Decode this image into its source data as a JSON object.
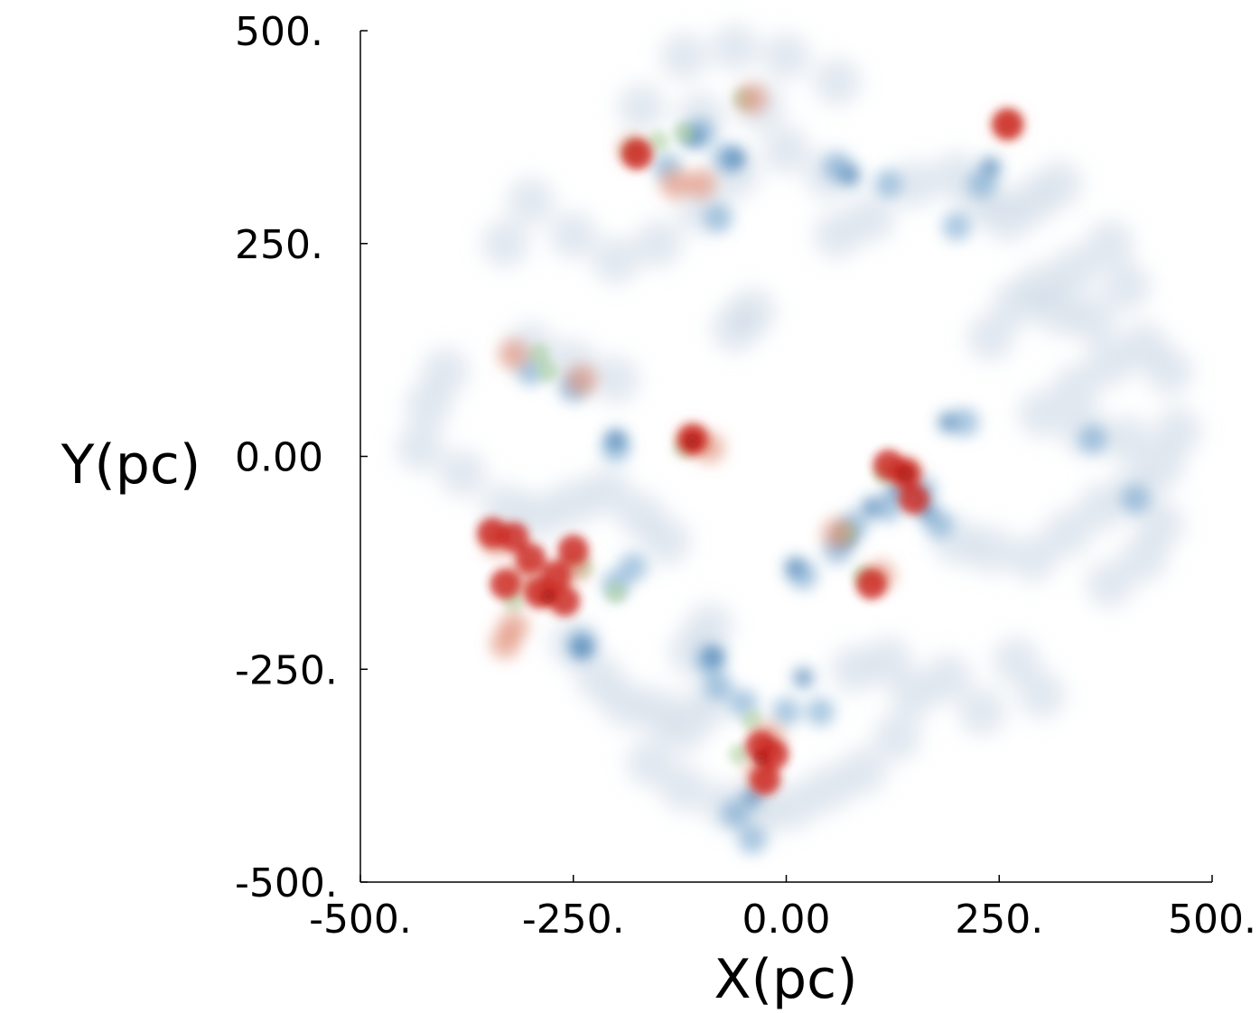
{
  "chart_data": {
    "type": "scatter",
    "xlabel": "X(pc)",
    "ylabel": "Y(pc)",
    "xlim": [
      -500,
      500
    ],
    "ylim": [
      -500,
      500
    ],
    "xticks": [
      -500,
      -250,
      0,
      250,
      500
    ],
    "yticks": [
      -500,
      -250,
      0,
      250,
      500
    ],
    "xtick_labels": [
      "-500.",
      "-250.",
      "0.00",
      "250.",
      "500."
    ],
    "ytick_labels": [
      "-500.",
      "-250.",
      "0.00",
      "250.",
      "500."
    ],
    "grid": false,
    "colors": {
      "diffuse": "#c9d6e3",
      "low": "#6a9fcb",
      "mid": "#2f6fa8",
      "green": "#a9cf9a",
      "salmon": "#e0896f",
      "high": "#c9221a",
      "peak": "#9e0f0c"
    },
    "series": [
      {
        "level": "diffuse",
        "points": [
          [
            -430,
            10
          ],
          [
            -380,
            -20
          ],
          [
            -330,
            -60
          ],
          [
            -290,
            -70
          ],
          [
            -250,
            -55
          ],
          [
            -210,
            -40
          ],
          [
            -170,
            -70
          ],
          [
            -140,
            -100
          ],
          [
            -250,
            -220
          ],
          [
            -220,
            -260
          ],
          [
            -190,
            -290
          ],
          [
            -150,
            -300
          ],
          [
            -120,
            -320
          ],
          [
            -90,
            -290
          ],
          [
            -110,
            -230
          ],
          [
            -90,
            -200
          ],
          [
            -160,
            -360
          ],
          [
            -120,
            -390
          ],
          [
            -70,
            -410
          ],
          [
            -30,
            -420
          ],
          [
            10,
            -410
          ],
          [
            50,
            -390
          ],
          [
            90,
            -370
          ],
          [
            130,
            -330
          ],
          [
            80,
            -250
          ],
          [
            120,
            -240
          ],
          [
            150,
            -280
          ],
          [
            190,
            -260
          ],
          [
            230,
            -300
          ],
          [
            270,
            -240
          ],
          [
            300,
            -280
          ],
          [
            200,
            -100
          ],
          [
            240,
            -110
          ],
          [
            290,
            -120
          ],
          [
            330,
            -90
          ],
          [
            370,
            -60
          ],
          [
            410,
            -40
          ],
          [
            440,
            -80
          ],
          [
            420,
            -120
          ],
          [
            380,
            -150
          ],
          [
            300,
            50
          ],
          [
            340,
            80
          ],
          [
            380,
            110
          ],
          [
            420,
            130
          ],
          [
            450,
            100
          ],
          [
            460,
            30
          ],
          [
            440,
            -10
          ],
          [
            400,
            20
          ],
          [
            350,
            30
          ],
          [
            300,
            200
          ],
          [
            340,
            220
          ],
          [
            380,
            250
          ],
          [
            400,
            200
          ],
          [
            360,
            160
          ],
          [
            320,
            170
          ],
          [
            270,
            180
          ],
          [
            240,
            140
          ],
          [
            150,
            320
          ],
          [
            200,
            330
          ],
          [
            230,
            300
          ],
          [
            260,
            280
          ],
          [
            290,
            300
          ],
          [
            320,
            320
          ],
          [
            100,
            280
          ],
          [
            -60,
            150
          ],
          [
            -40,
            170
          ],
          [
            -300,
            130
          ],
          [
            -250,
            110
          ],
          [
            -200,
            90
          ],
          [
            -400,
            100
          ],
          [
            -420,
            60
          ],
          [
            -300,
            300
          ],
          [
            -250,
            260
          ],
          [
            -330,
            250
          ],
          [
            -200,
            230
          ],
          [
            -150,
            250
          ],
          [
            -100,
            290
          ],
          [
            -60,
            330
          ],
          [
            0,
            360
          ],
          [
            50,
            330
          ],
          [
            60,
            260
          ],
          [
            -120,
            470
          ],
          [
            -60,
            480
          ],
          [
            0,
            470
          ],
          [
            60,
            440
          ],
          [
            -30,
            410
          ],
          [
            -100,
            400
          ],
          [
            -170,
            410
          ]
        ]
      },
      {
        "level": "low",
        "points": [
          [
            -240,
            -220
          ],
          [
            -200,
            -150
          ],
          [
            -180,
            -130
          ],
          [
            -90,
            -240
          ],
          [
            -80,
            -270
          ],
          [
            -50,
            -290
          ],
          [
            0,
            -300
          ],
          [
            40,
            -300
          ],
          [
            -60,
            -420
          ],
          [
            -40,
            -450
          ],
          [
            20,
            -140
          ],
          [
            60,
            -110
          ],
          [
            80,
            -80
          ],
          [
            120,
            -60
          ],
          [
            160,
            -40
          ],
          [
            180,
            -80
          ],
          [
            210,
            40
          ],
          [
            200,
            270
          ],
          [
            230,
            320
          ],
          [
            60,
            340
          ],
          [
            -100,
            380
          ],
          [
            -70,
            350
          ],
          [
            -140,
            340
          ],
          [
            -300,
            100
          ],
          [
            -250,
            80
          ],
          [
            -200,
            10
          ],
          [
            -80,
            280
          ],
          [
            360,
            20
          ],
          [
            410,
            -50
          ],
          [
            120,
            320
          ]
        ]
      },
      {
        "level": "mid",
        "points": [
          [
            -240,
            -225
          ],
          [
            -85,
            -235
          ],
          [
            -40,
            -400
          ],
          [
            20,
            -260
          ],
          [
            10,
            -130
          ],
          [
            70,
            -95
          ],
          [
            100,
            -60
          ],
          [
            130,
            -40
          ],
          [
            165,
            -65
          ],
          [
            190,
            40
          ],
          [
            240,
            340
          ],
          [
            75,
            330
          ],
          [
            -110,
            375
          ],
          [
            -200,
            20
          ],
          [
            -60,
            350
          ]
        ]
      },
      {
        "level": "green",
        "points": [
          [
            -320,
            -170
          ],
          [
            -240,
            -130
          ],
          [
            -200,
            -160
          ],
          [
            -40,
            -310
          ],
          [
            -55,
            -350
          ],
          [
            -150,
            370
          ],
          [
            -120,
            380
          ],
          [
            -50,
            420
          ],
          [
            -290,
            120
          ],
          [
            70,
            -90
          ],
          [
            115,
            -20
          ],
          [
            90,
            -140
          ],
          [
            -120,
            10
          ],
          [
            -180,
            360
          ],
          [
            -280,
            100
          ]
        ]
      },
      {
        "level": "salmon",
        "points": [
          [
            -340,
            -100
          ],
          [
            -310,
            -140
          ],
          [
            -280,
            -160
          ],
          [
            -250,
            -130
          ],
          [
            -320,
            -200
          ],
          [
            -20,
            -330
          ],
          [
            -30,
            -370
          ],
          [
            -180,
            360
          ],
          [
            -130,
            320
          ],
          [
            -100,
            320
          ],
          [
            -40,
            420
          ],
          [
            260,
            390
          ],
          [
            -320,
            120
          ],
          [
            -240,
            90
          ],
          [
            -110,
            20
          ],
          [
            -90,
            10
          ],
          [
            110,
            -140
          ],
          [
            60,
            -90
          ],
          [
            140,
            -20
          ],
          [
            -330,
            -220
          ]
        ]
      },
      {
        "level": "high",
        "points": [
          [
            -345,
            -90
          ],
          [
            -320,
            -95
          ],
          [
            -300,
            -120
          ],
          [
            -270,
            -140
          ],
          [
            -250,
            -110
          ],
          [
            -290,
            -160
          ],
          [
            -260,
            -170
          ],
          [
            -330,
            -150
          ],
          [
            -30,
            -340
          ],
          [
            -25,
            -380
          ],
          [
            -15,
            -350
          ],
          [
            140,
            -20
          ],
          [
            120,
            -10
          ],
          [
            150,
            -50
          ],
          [
            -110,
            20
          ],
          [
            260,
            390
          ],
          [
            100,
            -150
          ],
          [
            -175,
            355
          ]
        ]
      },
      {
        "level": "peak",
        "points": [
          [
            -280,
            -165
          ],
          [
            140,
            -20
          ],
          [
            -30,
            -355
          ],
          [
            -110,
            18
          ]
        ]
      }
    ]
  }
}
